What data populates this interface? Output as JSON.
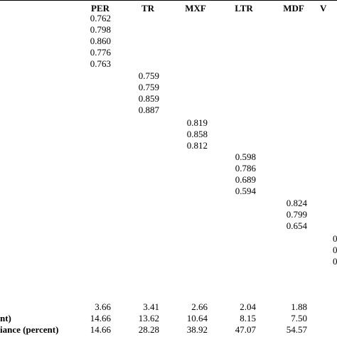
{
  "columns": [
    "PER",
    "TR",
    "MXF",
    "LTR",
    "MDF",
    "V"
  ],
  "loadings": {
    "PER": [
      "0.762",
      "0.798",
      "0.860",
      "0.776",
      "0.763"
    ],
    "TR": [
      "0.759",
      "0.759",
      "0.859",
      "0.887"
    ],
    "MXF": [
      "0.819",
      "0.858",
      "0.812"
    ],
    "LTR": [
      "0.598",
      "0.786",
      "0.689",
      "0.594"
    ],
    "MDF": [
      "0.824",
      "0.799",
      "0.654"
    ],
    "V": [
      "0",
      "0",
      "0"
    ]
  },
  "footer_rows": [
    {
      "label": "",
      "values": [
        "3.66",
        "3.41",
        "2.66",
        "2.04",
        "1.88",
        ""
      ]
    },
    {
      "label": "nt)",
      "values": [
        "14.66",
        "13.62",
        "10.64",
        "8.15",
        "7.50",
        ""
      ]
    },
    {
      "label": "iance (percent)",
      "values": [
        "14.66",
        "28.28",
        "38.92",
        "47.07",
        "54.57",
        ""
      ]
    }
  ]
}
